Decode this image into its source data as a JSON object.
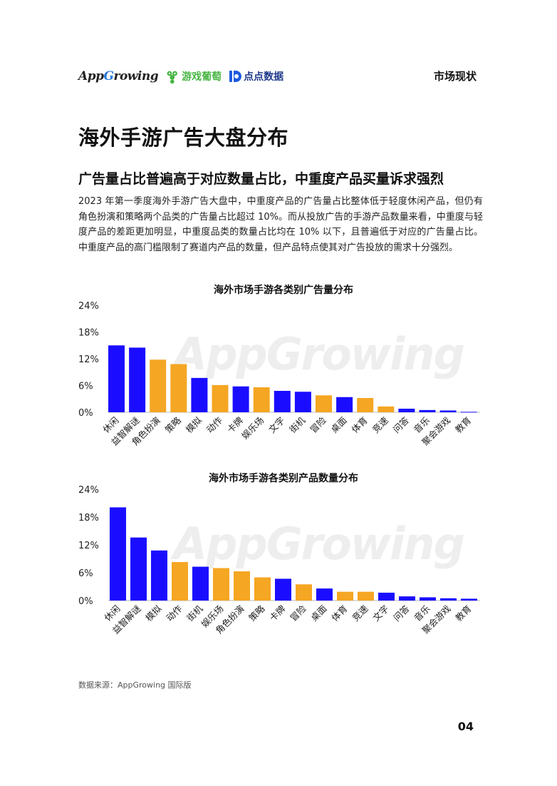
{
  "header": {
    "logo_appgrowing_prefix": "App",
    "logo_appgrowing_g": "G",
    "logo_appgrowing_suffix": "rowing",
    "logo_grape": "游戏葡萄",
    "logo_dd": "点点数据",
    "section": "市场现状"
  },
  "page_title": "海外手游广告大盘分布",
  "subtitle": "广告量占比普遍高于对应数量占比，中重度产品买量诉求强烈",
  "body": "2023 年第一季度海外手游广告大盘中，中重度产品的广告量占比整体低于轻度休闲产品，但仍有角色扮演和策略两个品类的广告量占比超过 10%。而从投放广告的手游产品数量来看，中重度与轻度产品的差距更加明显，中重度品类的数量占比均在 10% 以下，且普遍低于对应的广告量占比。中重度产品的高门槛限制了赛道内产品的数量，但产品特点使其对广告投放的需求十分强烈。",
  "watermark": "AppGrowing",
  "colors": {
    "light": "#1a0dff",
    "mid_heavy": "#f5a623",
    "axis": "#bbbbbb"
  },
  "chart_data": [
    {
      "type": "bar",
      "title": "海外市场手游各类别广告量分布",
      "categories": [
        "休闲",
        "益智解谜",
        "角色扮演",
        "策略",
        "模拟",
        "动作",
        "卡牌",
        "娱乐场",
        "文字",
        "街机",
        "冒险",
        "桌面",
        "体育",
        "竞速",
        "问答",
        "音乐",
        "聚会游戏",
        "教育"
      ],
      "values": [
        15.0,
        14.5,
        11.8,
        10.8,
        7.7,
        6.1,
        5.8,
        5.6,
        4.8,
        4.6,
        3.8,
        3.4,
        3.2,
        1.3,
        0.8,
        0.5,
        0.4,
        0.1
      ],
      "color_groups": [
        "light",
        "light",
        "mid",
        "mid",
        "light",
        "mid",
        "light",
        "mid",
        "light",
        "light",
        "mid",
        "light",
        "mid",
        "mid",
        "light",
        "light",
        "light",
        "light"
      ],
      "yticks": [
        "0%",
        "6%",
        "12%",
        "18%",
        "24%"
      ],
      "ylim": [
        0,
        24
      ]
    },
    {
      "type": "bar",
      "title": "海外市场手游各类别产品数量分布",
      "categories": [
        "休闲",
        "益智解谜",
        "模拟",
        "动作",
        "街机",
        "娱乐场",
        "角色扮演",
        "策略",
        "卡牌",
        "冒险",
        "桌面",
        "体育",
        "竞速",
        "文字",
        "问答",
        "音乐",
        "聚会游戏",
        "教育"
      ],
      "values": [
        20.1,
        13.6,
        10.8,
        8.3,
        7.3,
        7.0,
        6.3,
        5.0,
        4.7,
        3.5,
        2.6,
        1.9,
        1.9,
        1.7,
        0.9,
        0.7,
        0.5,
        0.4
      ],
      "color_groups": [
        "light",
        "light",
        "light",
        "mid",
        "light",
        "mid",
        "mid",
        "mid",
        "light",
        "mid",
        "light",
        "mid",
        "mid",
        "light",
        "light",
        "light",
        "light",
        "light"
      ],
      "yticks": [
        "0%",
        "6%",
        "12%",
        "18%",
        "24%"
      ],
      "ylim": [
        0,
        24
      ]
    }
  ],
  "source": "数据来源：AppGrowing 国际版",
  "page_number": "04"
}
